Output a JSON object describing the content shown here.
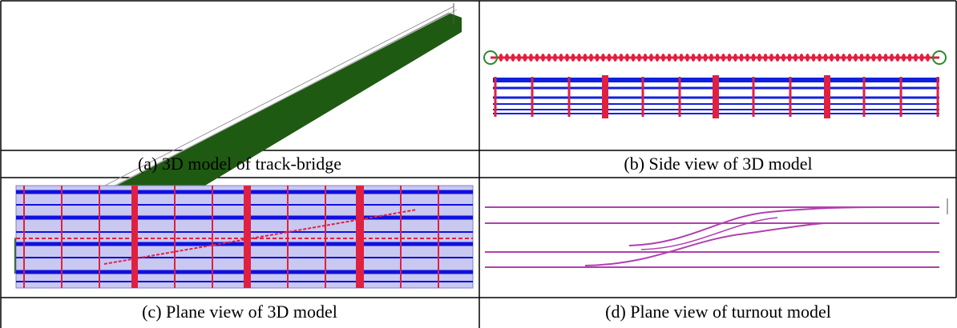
{
  "figure": {
    "panels": [
      {
        "caption": "(a) 3D model of track-bridge"
      },
      {
        "caption": "(b) Side view of 3D model"
      },
      {
        "caption": "(c) Plane view of 3D model"
      },
      {
        "caption": "(d) Plane view of turnout model"
      }
    ]
  }
}
